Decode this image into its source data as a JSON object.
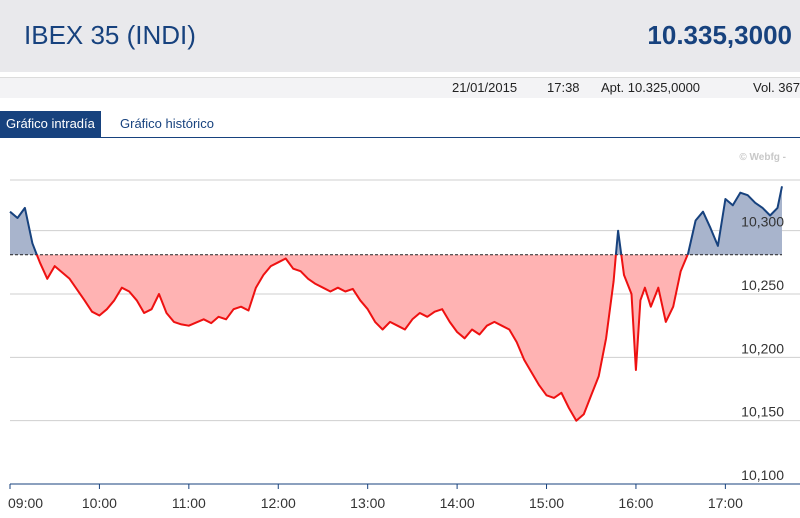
{
  "header": {
    "title": "IBEX 35 (INDI)",
    "last_price": "10.335,3000"
  },
  "info": {
    "date": "21/01/2015",
    "time": "17:38",
    "open": "Apt. 10.325,0000",
    "volume": "Vol. 367"
  },
  "tabs": [
    {
      "label": "Gráfico intradía",
      "active": true
    },
    {
      "label": "Gráfico histórico",
      "active": false
    }
  ],
  "watermark": "© Webfg -",
  "colors": {
    "brand": "#17427e",
    "up_fill": "#a8b4cc",
    "up_line": "#17427e",
    "down_fill": "#ffb3b3",
    "down_line": "#ee1111"
  },
  "chart_data": {
    "type": "area",
    "reference_value": 10281,
    "ylim": [
      10100,
      10340
    ],
    "xlim": [
      "09:00",
      "17:38"
    ],
    "y_ticks": [
      10100,
      10150,
      10200,
      10250,
      10300
    ],
    "y_tick_labels": [
      "10,100",
      "10,150",
      "10,200",
      "10,250",
      "10,300"
    ],
    "x_ticks": [
      "09:00",
      "10:00",
      "11:00",
      "12:00",
      "13:00",
      "14:00",
      "15:00",
      "16:00",
      "17:00"
    ],
    "grid": true,
    "series": [
      {
        "points": [
          [
            "09:00",
            10315
          ],
          [
            "09:05",
            10310
          ],
          [
            "09:10",
            10318
          ],
          [
            "09:15",
            10290
          ],
          [
            "09:20",
            10275
          ],
          [
            "09:25",
            10262
          ],
          [
            "09:30",
            10272
          ],
          [
            "09:40",
            10262
          ],
          [
            "09:50",
            10245
          ],
          [
            "09:55",
            10236
          ],
          [
            "10:00",
            10233
          ],
          [
            "10:05",
            10238
          ],
          [
            "10:10",
            10245
          ],
          [
            "10:15",
            10255
          ],
          [
            "10:20",
            10252
          ],
          [
            "10:25",
            10245
          ],
          [
            "10:30",
            10235
          ],
          [
            "10:35",
            10238
          ],
          [
            "10:40",
            10250
          ],
          [
            "10:45",
            10235
          ],
          [
            "10:50",
            10228
          ],
          [
            "10:55",
            10226
          ],
          [
            "11:00",
            10225
          ],
          [
            "11:10",
            10230
          ],
          [
            "11:15",
            10227
          ],
          [
            "11:20",
            10232
          ],
          [
            "11:25",
            10230
          ],
          [
            "11:30",
            10238
          ],
          [
            "11:35",
            10240
          ],
          [
            "11:40",
            10237
          ],
          [
            "11:45",
            10255
          ],
          [
            "11:50",
            10265
          ],
          [
            "11:55",
            10272
          ],
          [
            "12:00",
            10275
          ],
          [
            "12:05",
            10278
          ],
          [
            "12:10",
            10270
          ],
          [
            "12:15",
            10268
          ],
          [
            "12:20",
            10262
          ],
          [
            "12:25",
            10258
          ],
          [
            "12:30",
            10255
          ],
          [
            "12:35",
            10252
          ],
          [
            "12:40",
            10255
          ],
          [
            "12:45",
            10252
          ],
          [
            "12:50",
            10254
          ],
          [
            "12:55",
            10245
          ],
          [
            "13:00",
            10238
          ],
          [
            "13:05",
            10228
          ],
          [
            "13:10",
            10222
          ],
          [
            "13:15",
            10228
          ],
          [
            "13:20",
            10225
          ],
          [
            "13:25",
            10222
          ],
          [
            "13:30",
            10230
          ],
          [
            "13:35",
            10235
          ],
          [
            "13:40",
            10232
          ],
          [
            "13:45",
            10236
          ],
          [
            "13:50",
            10238
          ],
          [
            "13:55",
            10228
          ],
          [
            "14:00",
            10220
          ],
          [
            "14:05",
            10215
          ],
          [
            "14:10",
            10222
          ],
          [
            "14:15",
            10218
          ],
          [
            "14:20",
            10225
          ],
          [
            "14:25",
            10228
          ],
          [
            "14:30",
            10225
          ],
          [
            "14:35",
            10222
          ],
          [
            "14:40",
            10212
          ],
          [
            "14:45",
            10198
          ],
          [
            "14:50",
            10188
          ],
          [
            "14:55",
            10178
          ],
          [
            "15:00",
            10170
          ],
          [
            "15:05",
            10168
          ],
          [
            "15:10",
            10172
          ],
          [
            "15:15",
            10160
          ],
          [
            "15:20",
            10150
          ],
          [
            "15:25",
            10155
          ],
          [
            "15:30",
            10170
          ],
          [
            "15:35",
            10185
          ],
          [
            "15:40",
            10215
          ],
          [
            "15:45",
            10260
          ],
          [
            "15:48",
            10300
          ],
          [
            "15:52",
            10265
          ],
          [
            "15:57",
            10250
          ],
          [
            "16:00",
            10190
          ],
          [
            "16:03",
            10245
          ],
          [
            "16:06",
            10255
          ],
          [
            "16:10",
            10240
          ],
          [
            "16:15",
            10255
          ],
          [
            "16:20",
            10228
          ],
          [
            "16:25",
            10240
          ],
          [
            "16:30",
            10268
          ],
          [
            "16:35",
            10282
          ],
          [
            "16:40",
            10308
          ],
          [
            "16:45",
            10315
          ],
          [
            "16:50",
            10302
          ],
          [
            "16:55",
            10288
          ],
          [
            "17:00",
            10325
          ],
          [
            "17:05",
            10320
          ],
          [
            "17:10",
            10330
          ],
          [
            "17:15",
            10328
          ],
          [
            "17:20",
            10322
          ],
          [
            "17:25",
            10318
          ],
          [
            "17:30",
            10312
          ],
          [
            "17:35",
            10318
          ],
          [
            "17:38",
            10335
          ]
        ]
      }
    ]
  }
}
